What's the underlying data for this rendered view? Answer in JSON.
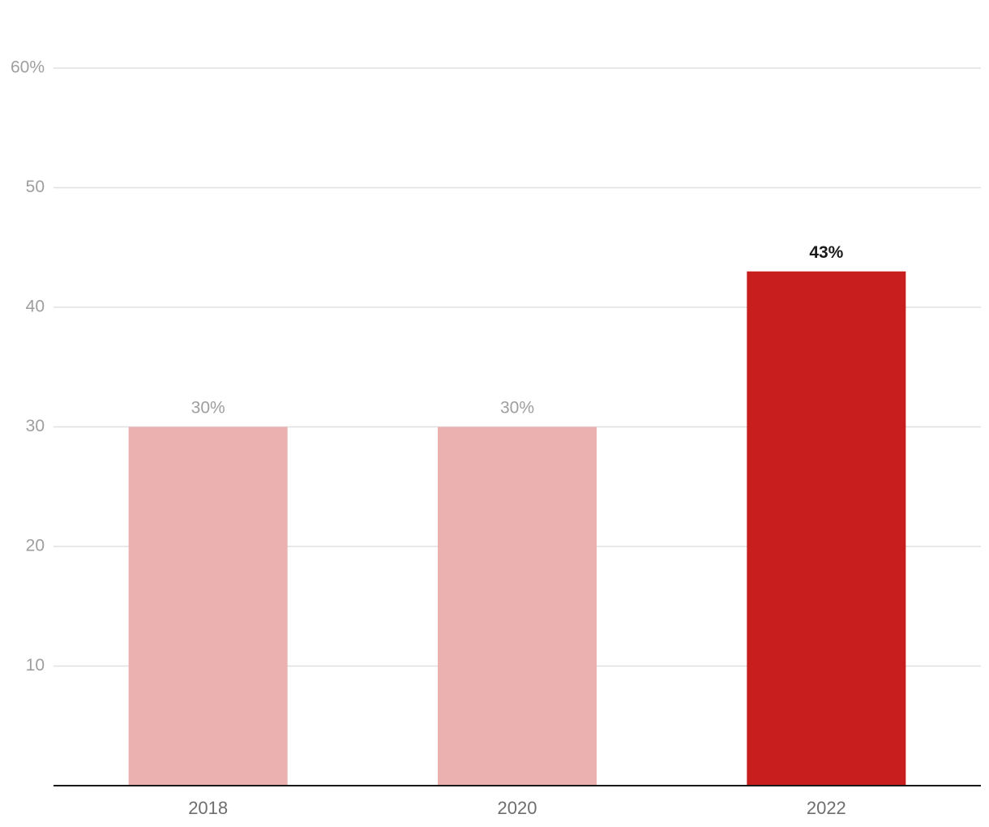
{
  "chart_data": {
    "type": "bar",
    "categories": [
      "2018",
      "2020",
      "2022"
    ],
    "values": [
      30,
      30,
      43
    ],
    "data_labels": [
      "30%",
      "30%",
      "43%"
    ],
    "highlight_index": 2,
    "title": "",
    "xlabel": "",
    "ylabel": "",
    "ylim": [
      0,
      60
    ],
    "y_ticks": [
      10,
      20,
      30,
      40,
      50,
      60
    ],
    "y_tick_labels": [
      "10",
      "20",
      "30",
      "40",
      "50",
      "60%"
    ],
    "grid": true,
    "legend": "none",
    "colors": {
      "bar_muted": "#eab1b0",
      "bar_highlight": "#c81e1e"
    }
  }
}
